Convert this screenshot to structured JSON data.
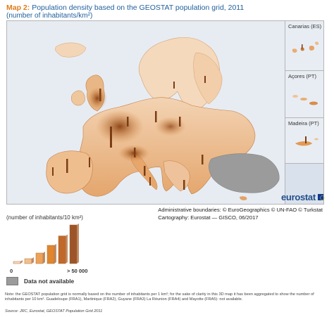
{
  "header": {
    "map_number": "Map 2:",
    "title": "Population density based on the GEOSTAT population grid, 2011",
    "subtitle": "(number of inhabitants/km²)"
  },
  "insets": [
    {
      "label": "Canarias (ES)"
    },
    {
      "label": "Açores (PT)"
    },
    {
      "label": "Madeira (PT)"
    }
  ],
  "logo": {
    "text": "eurostat"
  },
  "credits": {
    "line1": "Administrative boundaries: © EuroGeographics © UN-FAO © Turkstat",
    "line2": "Cartography:  Eurostat — GISCO, 06/2017"
  },
  "legend": {
    "title": "(number of inhabitants/10 km²)",
    "min_label": "0",
    "max_label": "> 50 000",
    "not_available_label": "Data not available",
    "class_colors": [
      "#f7dcc0",
      "#f3c08c",
      "#eea258",
      "#e0862f",
      "#c0692a",
      "#9b5529"
    ],
    "not_available_color": "#9b9b9b"
  },
  "note": "Note: the GEOSTAT population grid is normally based on the number of inhabitants per 1 km²; for the sake of clarity in this 3D map it has been aggregated to show the number of inhabitants per 10 km². Guadeloupe (FRA1), Martinique (FRA2), Guyane (FRA3) La Réunion (FRA4) and Mayotte (FRA5): not available.",
  "source": "Source: JRC, Eurostat, GEOSTAT Population Grid 2011"
}
